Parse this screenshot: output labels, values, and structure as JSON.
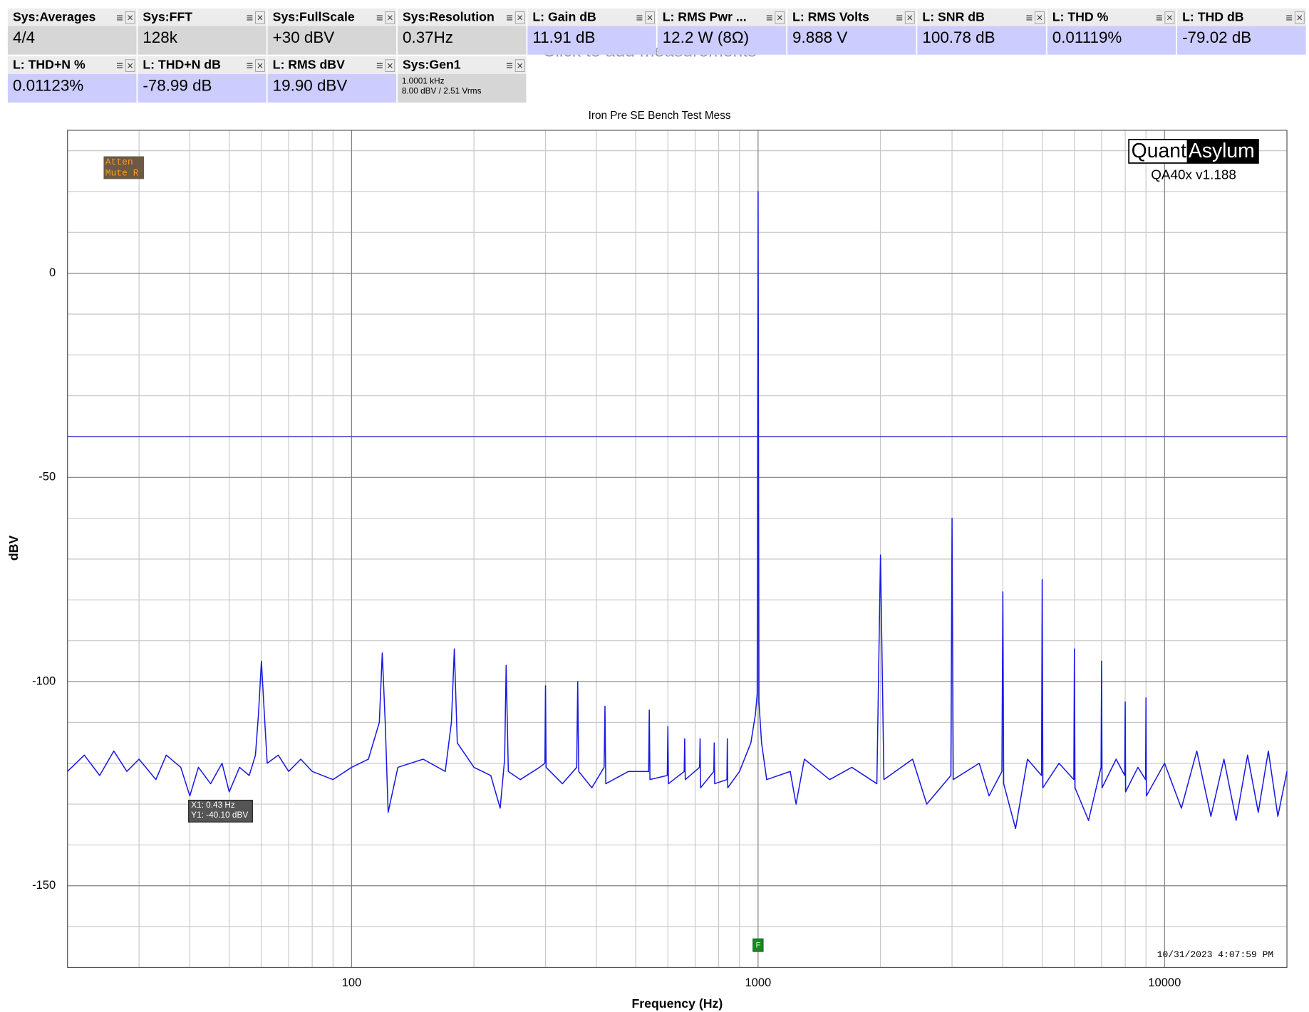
{
  "hint": "Click to add measurements",
  "measurements": [
    {
      "title": "Sys:Averages",
      "value": "4/4",
      "kind": "sys"
    },
    {
      "title": "Sys:FFT",
      "value": "128k",
      "kind": "sys"
    },
    {
      "title": "Sys:FullScale",
      "value": "+30 dBV",
      "kind": "sys"
    },
    {
      "title": "Sys:Resolution",
      "value": "0.37Hz",
      "kind": "sys"
    },
    {
      "title": "L: Gain dB",
      "value": "11.91 dB",
      "kind": "chan"
    },
    {
      "title": "L: RMS Pwr ...",
      "value": "12.2 W (8Ω)",
      "kind": "chan"
    },
    {
      "title": "L: RMS Volts",
      "value": "9.888 V",
      "kind": "chan"
    },
    {
      "title": "L: SNR dB",
      "value": "100.78 dB",
      "kind": "chan"
    },
    {
      "title": "L: THD %",
      "value": "0.01119%",
      "kind": "chan"
    },
    {
      "title": "L: THD dB",
      "value": "-79.02 dB",
      "kind": "chan"
    },
    {
      "title": "L: THD+N %",
      "value": "0.01123%",
      "kind": "chan"
    },
    {
      "title": "L: THD+N dB",
      "value": "-78.99 dB",
      "kind": "chan"
    },
    {
      "title": "L: RMS dBV",
      "value": "19.90 dBV",
      "kind": "chan"
    },
    {
      "title": "Sys:Gen1",
      "lines": [
        "1.0001 kHz",
        "8.00 dBV  / 2.51 Vrms"
      ],
      "kind": "sys"
    }
  ],
  "chart_data": {
    "type": "line",
    "title": "Iron Pre SE Bench Test Mess",
    "x_label": "Frequency (Hz)",
    "y_label": "dBV",
    "log_x": true,
    "grid": true,
    "xlim": [
      20,
      20000
    ],
    "ylim": [
      -170,
      35
    ],
    "xticks": [
      100,
      1000,
      10000
    ],
    "yticks": [
      0,
      -50,
      -100,
      -150
    ],
    "minor_xticks": [
      20,
      30,
      40,
      50,
      60,
      70,
      80,
      90,
      200,
      300,
      400,
      500,
      600,
      700,
      800,
      900,
      2000,
      3000,
      4000,
      5000,
      6000,
      7000,
      8000,
      9000,
      20000
    ],
    "minor_yticks": [
      30,
      20,
      10,
      -10,
      -20,
      -30,
      -40,
      -60,
      -70,
      -80,
      -90,
      -110,
      -120,
      -130,
      -140,
      -160,
      -170
    ],
    "reference_line": -40,
    "series": [
      {
        "name": "L",
        "color": "#1a1ae6",
        "x": [
          20,
          22,
          24,
          26,
          28,
          30,
          33,
          35,
          38,
          40,
          42,
          45,
          48,
          50,
          53,
          56,
          58,
          59,
          60,
          61,
          62,
          66,
          70,
          75,
          80,
          90,
          100,
          110,
          117,
          119,
          121,
          123,
          130,
          150,
          170,
          176,
          179,
          182,
          200,
          220,
          232,
          238,
          240,
          243,
          260,
          290,
          299,
          300,
          301,
          330,
          358,
          360,
          362,
          390,
          418,
          420,
          422,
          480,
          538,
          540,
          542,
          598,
          600,
          602,
          658,
          660,
          662,
          718,
          720,
          722,
          778,
          780,
          782,
          838,
          840,
          842,
          900,
          960,
          985,
          995,
          1000,
          1005,
          1020,
          1050,
          1200,
          1240,
          1300,
          1500,
          1700,
          1960,
          2000,
          2040,
          2400,
          2600,
          2980,
          3000,
          3020,
          3500,
          3700,
          3980,
          4000,
          4020,
          4300,
          4600,
          4980,
          5000,
          5020,
          5500,
          5980,
          6000,
          6020,
          6500,
          6980,
          7000,
          7020,
          7600,
          7980,
          8000,
          8020,
          8600,
          8980,
          9000,
          9020,
          10000,
          11000,
          12000,
          13000,
          14000,
          15000,
          16000,
          17000,
          18000,
          19000,
          20000
        ],
        "values": [
          -122,
          -118,
          -123,
          -117,
          -122,
          -119,
          -124,
          -118,
          -121,
          -128,
          -121,
          -125,
          -120,
          -127,
          -121,
          -123,
          -118,
          -108,
          -95,
          -108,
          -120,
          -118,
          -122,
          -119,
          -122,
          -124,
          -121,
          -119,
          -110,
          -93,
          -110,
          -132,
          -121,
          -119,
          -122,
          -110,
          -92,
          -115,
          -121,
          -123,
          -131,
          -119,
          -96,
          -122,
          -124,
          -121,
          -120,
          -101,
          -121,
          -125,
          -121,
          -100,
          -122,
          -126,
          -121,
          -106,
          -125,
          -122,
          -122,
          -107,
          -124,
          -123,
          -111,
          -125,
          -122,
          -114,
          -124,
          -121,
          -114,
          -126,
          -122,
          -115,
          -125,
          -124,
          -114,
          -126,
          -122,
          -115,
          -108,
          -103,
          20,
          -105,
          -115,
          -124,
          -122,
          -130,
          -119,
          -124,
          -121,
          -125,
          -69,
          -124,
          -119,
          -130,
          -123,
          -60,
          -124,
          -120,
          -128,
          -122,
          -78,
          -125,
          -136,
          -119,
          -123,
          -75,
          -126,
          -120,
          -124,
          -92,
          -126,
          -134,
          -121,
          -95,
          -126,
          -119,
          -123,
          -105,
          -127,
          -121,
          -124,
          -104,
          -128,
          -120,
          -131,
          -117,
          -133,
          -119,
          -134,
          -118,
          -132,
          -117,
          -133,
          -122
        ]
      }
    ],
    "badge": [
      "Atten",
      "Mute R"
    ],
    "logo": [
      "Quant",
      "Asylum"
    ],
    "version": "QA40x v1.188",
    "cursor": [
      "X1: 0.43 Hz",
      "Y1: -40.10 dBV"
    ],
    "timestamp": "10/31/2023 4:07:59 PM",
    "marker": {
      "label": "F",
      "x": 1000
    }
  }
}
